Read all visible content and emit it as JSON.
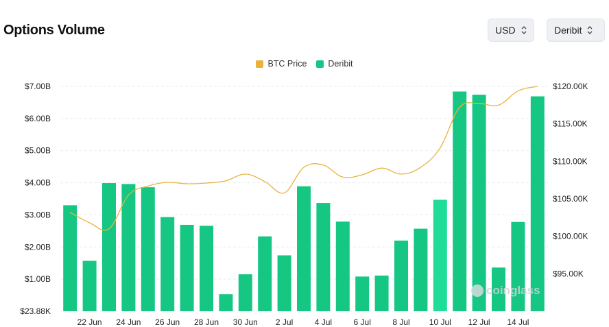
{
  "title": "Options Volume",
  "controls": {
    "currency": "USD",
    "exchange": "Deribit"
  },
  "colors": {
    "deribit": "#16c784",
    "deribit_highlight": "#1fdc99",
    "btc_price": "#e9b33b",
    "grid": "#e9ebee"
  },
  "watermark": "coinglass",
  "chart_data": {
    "type": "bar",
    "legend": [
      "BTC Price",
      "Deribit"
    ],
    "legend_position": "top-center",
    "grid": true,
    "x_tick_labels": [
      "22 Jun",
      "24 Jun",
      "26 Jun",
      "28 Jun",
      "30 Jun",
      "2 Jul",
      "4 Jul",
      "6 Jul",
      "8 Jul",
      "10 Jul",
      "12 Jul",
      "14 Jul"
    ],
    "y_left_tick_labels": [
      "$23.88K",
      "$1.00B",
      "$2.00B",
      "$3.00B",
      "$4.00B",
      "$5.00B",
      "$6.00B",
      "$7.00B"
    ],
    "y_right_tick_labels": [
      "$95.00K",
      "$100.00K",
      "$105.00K",
      "$110.00K",
      "$115.00K",
      "$120.00K"
    ],
    "y_left_range": [
      0,
      7000000000
    ],
    "y_right_range": [
      90000,
      120000
    ],
    "x": [
      "21 Jun",
      "22 Jun",
      "23 Jun",
      "24 Jun",
      "25 Jun",
      "26 Jun",
      "27 Jun",
      "28 Jun",
      "29 Jun",
      "30 Jun",
      "1 Jul",
      "2 Jul",
      "3 Jul",
      "4 Jul",
      "5 Jul",
      "6 Jul",
      "7 Jul",
      "8 Jul",
      "9 Jul",
      "10 Jul",
      "11 Jul",
      "12 Jul",
      "13 Jul",
      "14 Jul",
      "15 Jul"
    ],
    "series": [
      {
        "name": "Deribit",
        "type": "bar",
        "axis": "left",
        "values": [
          3300000000,
          1570000000,
          3990000000,
          3960000000,
          3860000000,
          2930000000,
          2690000000,
          2660000000,
          530000000,
          1150000000,
          2330000000,
          1740000000,
          3890000000,
          3370000000,
          2790000000,
          1080000000,
          1110000000,
          2200000000,
          2570000000,
          3470000000,
          6840000000,
          6740000000,
          1360000000,
          2780000000,
          6690000000
        ]
      },
      {
        "name": "BTC Price",
        "type": "line",
        "axis": "right",
        "values": [
          103200,
          101800,
          101000,
          105500,
          106700,
          107200,
          107000,
          107100,
          107400,
          108300,
          107300,
          105800,
          109200,
          109500,
          107900,
          108200,
          109100,
          108300,
          109200,
          111800,
          117200,
          117700,
          117500,
          119400,
          120000
        ]
      }
    ]
  }
}
